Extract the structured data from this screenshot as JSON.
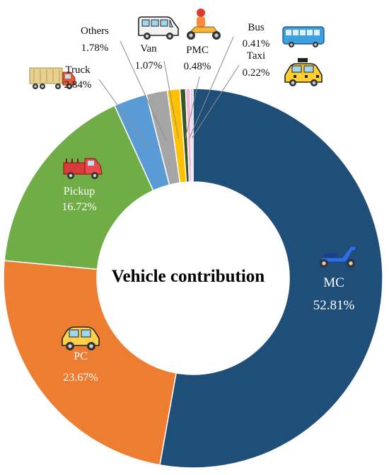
{
  "chart_data": {
    "type": "pie",
    "style": "donut",
    "center_label": "Vehicle contribution",
    "unit": "%",
    "slices": [
      {
        "name": "MC",
        "value": 52.81,
        "label": "52.81%",
        "color": "#1f4e79",
        "icon": "scooter-icon"
      },
      {
        "name": "PC",
        "value": 23.67,
        "label": "23.67%",
        "color": "#ed7d31",
        "icon": "car-icon"
      },
      {
        "name": "Pickup",
        "value": 16.72,
        "label": "16.72%",
        "color": "#70ad47",
        "icon": "pickup-truck-icon"
      },
      {
        "name": "Truck",
        "value": 2.84,
        "label": "2.84%",
        "color": "#5b9bd5",
        "icon": "truck-icon"
      },
      {
        "name": "Others",
        "value": 1.78,
        "label": "1.78%",
        "color": "#a5a5a5",
        "icon": ""
      },
      {
        "name": "Van",
        "value": 1.07,
        "label": "1.07%",
        "color": "#ffc000",
        "icon": "van-icon"
      },
      {
        "name": "PMC",
        "value": 0.48,
        "label": "0.48%",
        "color": "#375623",
        "icon": "motorcycle-rider-icon"
      },
      {
        "name": "Bus",
        "value": 0.41,
        "label": "0.41%",
        "color": "#f4b6d8",
        "icon": "bus-icon"
      },
      {
        "name": "Taxi",
        "value": 0.22,
        "label": "0.22%",
        "color": "#d9c3ef",
        "icon": "taxi-icon"
      }
    ]
  }
}
